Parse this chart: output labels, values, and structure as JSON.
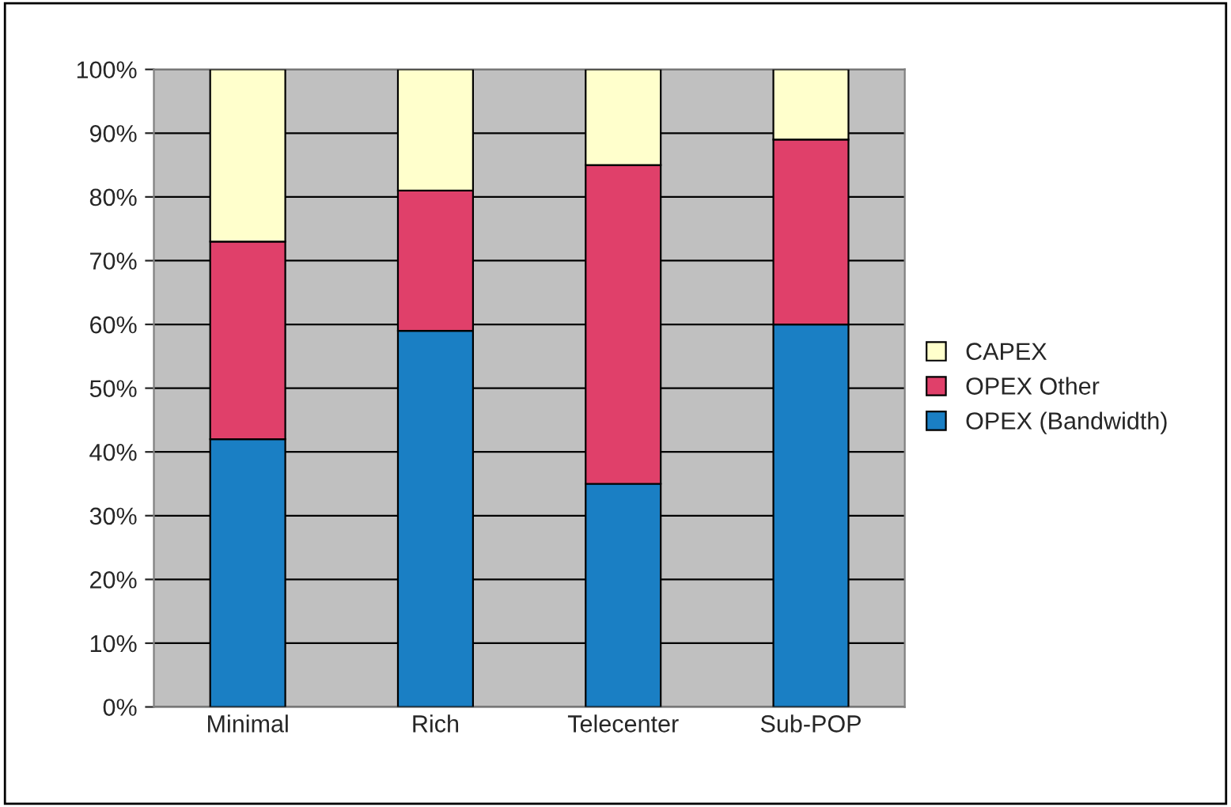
{
  "chart_data": {
    "type": "bar",
    "stacked": true,
    "categories": [
      "Minimal",
      "Rich",
      "Telecenter",
      "Sub-POP"
    ],
    "series": [
      {
        "name": "OPEX (Bandwidth)",
        "color": "#1a7fc4",
        "values": [
          42,
          59,
          35,
          60
        ]
      },
      {
        "name": "OPEX Other",
        "color": "#e0406a",
        "values": [
          31,
          22,
          50,
          29
        ]
      },
      {
        "name": "CAPEX",
        "color": "#ffffcc",
        "values": [
          27,
          19,
          15,
          11
        ]
      }
    ],
    "ylim": [
      0,
      100
    ],
    "yticks": [
      {
        "value": 0,
        "label": "0%"
      },
      {
        "value": 10,
        "label": "10%"
      },
      {
        "value": 20,
        "label": "20%"
      },
      {
        "value": 30,
        "label": "30%"
      },
      {
        "value": 40,
        "label": "40%"
      },
      {
        "value": 50,
        "label": "50%"
      },
      {
        "value": 60,
        "label": "60%"
      },
      {
        "value": 70,
        "label": "70%"
      },
      {
        "value": 80,
        "label": "80%"
      },
      {
        "value": 90,
        "label": "90%"
      },
      {
        "value": 100,
        "label": "100%"
      }
    ],
    "grid": "y",
    "legend": "right"
  }
}
